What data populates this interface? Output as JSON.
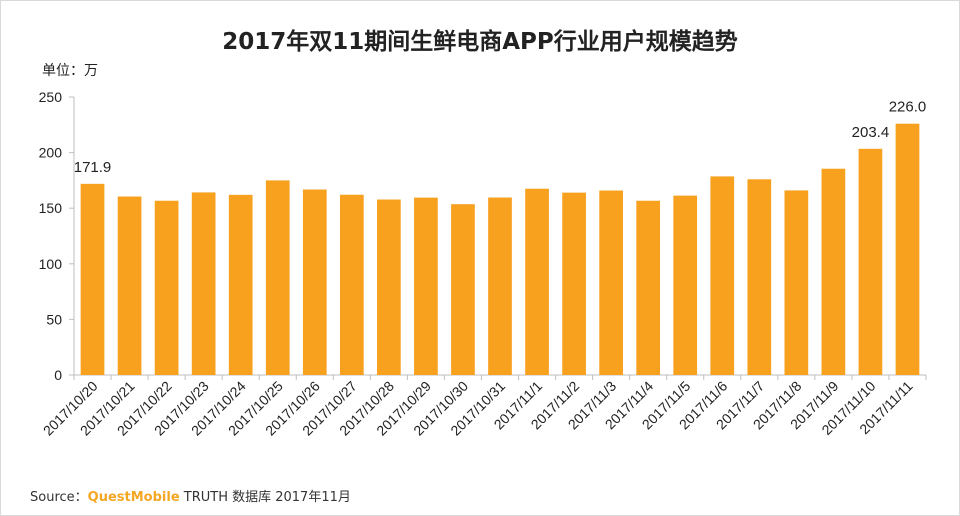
{
  "chart_data": {
    "type": "bar",
    "title": "2017年双11期间生鲜电商APP行业用户规模趋势",
    "unit_label": "单位：万",
    "categories": [
      "2017/10/20",
      "2017/10/21",
      "2017/10/22",
      "2017/10/23",
      "2017/10/24",
      "2017/10/25",
      "2017/10/26",
      "2017/10/27",
      "2017/10/28",
      "2017/10/29",
      "2017/10/30",
      "2017/10/31",
      "2017/11/1",
      "2017/11/2",
      "2017/11/3",
      "2017/11/4",
      "2017/11/5",
      "2017/11/6",
      "2017/11/7",
      "2017/11/8",
      "2017/11/9",
      "2017/11/10",
      "2017/11/11"
    ],
    "values": [
      171.9,
      160.5,
      156.7,
      164.2,
      162.0,
      175.0,
      166.8,
      162.1,
      157.8,
      159.5,
      153.6,
      159.6,
      167.5,
      164.0,
      165.9,
      156.7,
      161.3,
      178.6,
      176.0,
      166.0,
      185.5,
      203.4,
      226.0
    ],
    "data_labels": [
      {
        "index": 0,
        "text": "171.9"
      },
      {
        "index": 21,
        "text": "203.4"
      },
      {
        "index": 22,
        "text": "226.0"
      }
    ],
    "ylim": [
      0,
      250
    ],
    "yticks": [
      0,
      50,
      100,
      150,
      200,
      250
    ],
    "ytick_labels": [
      "0",
      "50",
      "100",
      "150",
      "200",
      "250"
    ],
    "bar_color": "#f7a11f",
    "grid": false
  },
  "source": {
    "prefix": "Source：",
    "brand": "QuestMobile",
    "suffix": " TRUTH 数据库 2017年11月"
  }
}
